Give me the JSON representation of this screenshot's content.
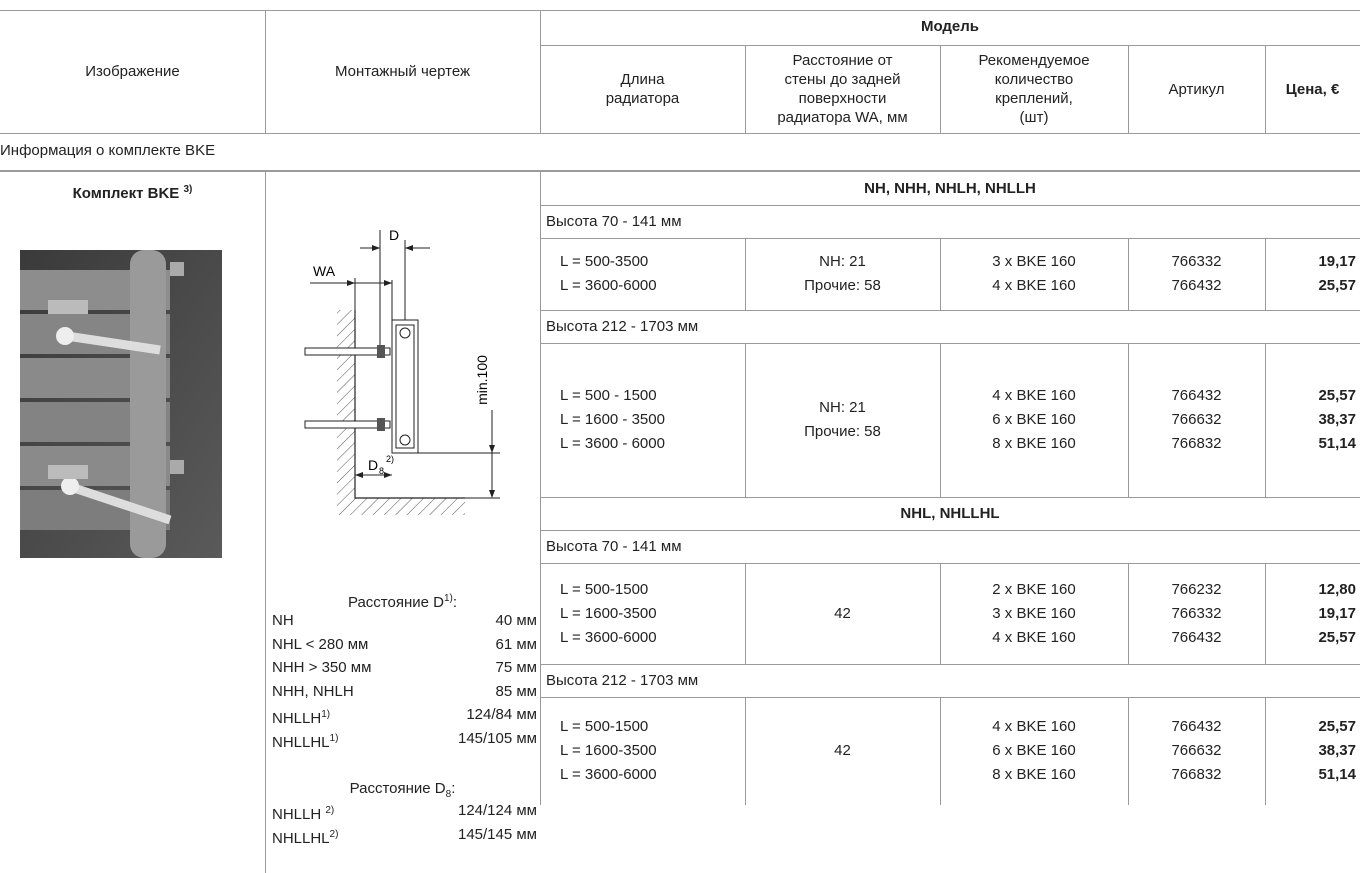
{
  "header": {
    "image": "Изображение",
    "drawing": "Монтажный чертеж",
    "model": "Модель",
    "columns": [
      [
        "Длина",
        "радиатора"
      ],
      [
        "Расстояние от",
        "стены до задней",
        "поверхности",
        "радиатора WA, мм"
      ],
      [
        "Рекомендуемое",
        "количество",
        "креплений,",
        "(шт)"
      ],
      [
        "Артикул"
      ],
      [
        "Цена, €"
      ]
    ]
  },
  "section": "Информация о комплекте BKE",
  "kit": {
    "title": "Комплект BKE",
    "note": "3)"
  },
  "diagram": {
    "d": "D",
    "wa": "WA",
    "min": "min.100",
    "d8": "D",
    "d8_sub": "8",
    "d8_note": "2)"
  },
  "distances": [
    {
      "title": "Расстояние D",
      "note": "1)",
      "colon": ":",
      "items": [
        {
          "name": "NH",
          "value": "40 мм"
        },
        {
          "name": "NHL < 280 мм",
          "value": "61 мм"
        },
        {
          "name": "NHH > 350 мм",
          "value": "75 мм"
        },
        {
          "name": "NHH, NHLH",
          "value": "85 мм"
        },
        {
          "name": "NHLLH",
          "note": "1)",
          "value": "124/84 мм"
        },
        {
          "name": "NHLLHL",
          "note": "1)",
          "value": "145/105 мм"
        }
      ]
    },
    {
      "title": "Расстояние D",
      "sub": "8",
      "colon": ":",
      "items": [
        {
          "name": "NHLLH ",
          "note": "2)",
          "value": "124/124 мм"
        },
        {
          "name": "NHLLHL",
          "note": "2)",
          "value": "145/145 мм"
        }
      ]
    }
  ],
  "groups": [
    {
      "title": "NH, NHH, NHLH, NHLLH",
      "blocks": [
        {
          "height": "Высота 70 - 141 мм",
          "wa": [
            "NH: 21",
            "Прочие: 58"
          ],
          "rows": [
            [
              "L = 500-3500",
              "3 x BKE 160",
              "766332",
              "19,17"
            ],
            [
              "L = 3600-6000",
              "4 x BKE 160",
              "766432",
              "25,57"
            ]
          ]
        },
        {
          "height": "Высота 212 - 1703 мм",
          "wa": [
            "NH: 21",
            "Прочие: 58"
          ],
          "rows": [
            [
              "L = 500 - 1500",
              "4 x BKE 160",
              "766432",
              "25,57"
            ],
            [
              "L = 1600 - 3500",
              "6 x BKE 160",
              "766632",
              "38,37"
            ],
            [
              "L = 3600 - 6000",
              "8 x BKE 160",
              "766832",
              "51,14"
            ]
          ]
        }
      ]
    },
    {
      "title": "NHL, NHLLHL",
      "blocks": [
        {
          "height": "Высота 70 - 141 мм",
          "wa": [
            "42"
          ],
          "rows": [
            [
              "L = 500-1500",
              "2 x BKE 160",
              "766232",
              "12,80"
            ],
            [
              "L = 1600-3500",
              "3 x BKE 160",
              "766332",
              "19,17"
            ],
            [
              "L = 3600-6000",
              "4 x BKE 160",
              "766432",
              "25,57"
            ]
          ]
        },
        {
          "height": "Высота 212 - 1703 мм",
          "wa": [
            "42"
          ],
          "rows": [
            [
              "L = 500-1500",
              "4 x BKE 160",
              "766432",
              "25,57"
            ],
            [
              "L = 1600-3500",
              "6 x BKE 160",
              "766632",
              "38,37"
            ],
            [
              "L = 3600-6000",
              "8 x BKE 160",
              "766832",
              "51,14"
            ]
          ]
        }
      ]
    }
  ]
}
